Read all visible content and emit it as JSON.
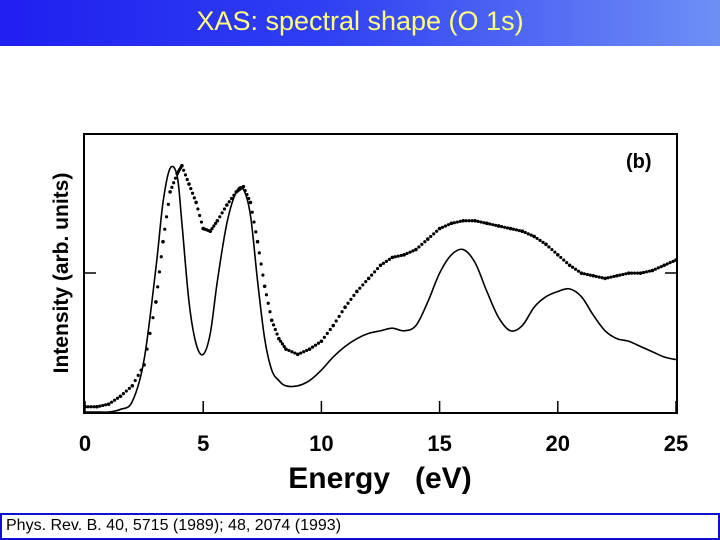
{
  "slide": {
    "title": "XAS: spectral shape (O 1s)",
    "caption": "Phys. Rev. B. 40, 5715 (1989); 48, 2074 (1993)",
    "title_bar_color": "#2a35f0",
    "title_text_color": "#ffff80",
    "caption_border_color": "#1010d0"
  },
  "chart_data": {
    "type": "line",
    "panel_label": "(b)",
    "xlabel": "Energy   (eV)",
    "ylabel": "Intensity (arb. units)",
    "xlim": [
      0,
      25
    ],
    "ylim": [
      0,
      1
    ],
    "xticks": [
      0,
      5,
      10,
      15,
      20,
      25
    ],
    "xtick_labels": [
      "0",
      "5",
      "10",
      "15",
      "20",
      "25"
    ],
    "series": [
      {
        "style": "dots",
        "x": [
          0,
          0.5,
          1.0,
          1.5,
          2.0,
          2.5,
          3.0,
          3.3,
          3.6,
          3.9,
          4.1,
          4.4,
          4.7,
          5.0,
          5.3,
          5.6,
          6.0,
          6.4,
          6.7,
          7.0,
          7.3,
          7.6,
          7.9,
          8.2,
          8.5,
          9.0,
          9.5,
          10.0,
          10.5,
          11.0,
          11.5,
          12.0,
          12.5,
          13.0,
          13.5,
          14.0,
          14.5,
          15.0,
          15.5,
          16.0,
          16.5,
          17.0,
          17.5,
          18.0,
          18.5,
          19.0,
          19.5,
          20.0,
          20.5,
          21.0,
          21.5,
          22.0,
          22.5,
          23.0,
          23.5,
          24.0,
          24.5,
          25.0
        ],
        "y": [
          0.02,
          0.02,
          0.03,
          0.06,
          0.1,
          0.18,
          0.42,
          0.65,
          0.84,
          0.91,
          0.94,
          0.87,
          0.8,
          0.7,
          0.69,
          0.73,
          0.79,
          0.84,
          0.86,
          0.8,
          0.65,
          0.48,
          0.35,
          0.28,
          0.24,
          0.22,
          0.24,
          0.27,
          0.33,
          0.4,
          0.46,
          0.51,
          0.56,
          0.59,
          0.6,
          0.62,
          0.66,
          0.7,
          0.72,
          0.73,
          0.73,
          0.72,
          0.71,
          0.7,
          0.69,
          0.67,
          0.64,
          0.6,
          0.56,
          0.53,
          0.52,
          0.51,
          0.52,
          0.53,
          0.53,
          0.54,
          0.56,
          0.58
        ]
      },
      {
        "style": "line",
        "x": [
          0,
          0.5,
          1.0,
          1.5,
          2.0,
          2.5,
          3.0,
          3.3,
          3.6,
          3.9,
          4.1,
          4.4,
          4.7,
          5.0,
          5.3,
          5.6,
          6.0,
          6.4,
          6.7,
          7.0,
          7.3,
          7.6,
          7.9,
          8.2,
          8.5,
          9.0,
          9.5,
          10.0,
          10.5,
          11.0,
          11.5,
          12.0,
          12.5,
          13.0,
          13.5,
          14.0,
          14.5,
          15.0,
          15.5,
          16.0,
          16.5,
          17.0,
          17.5,
          18.0,
          18.5,
          19.0,
          19.5,
          20.0,
          20.5,
          21.0,
          21.5,
          22.0,
          22.5,
          23.0,
          23.5,
          24.0,
          24.5,
          25.0
        ],
        "y": [
          0.0,
          0.0,
          0.0,
          0.01,
          0.04,
          0.2,
          0.55,
          0.8,
          0.93,
          0.9,
          0.72,
          0.42,
          0.26,
          0.22,
          0.3,
          0.5,
          0.72,
          0.84,
          0.85,
          0.75,
          0.5,
          0.28,
          0.16,
          0.12,
          0.1,
          0.1,
          0.12,
          0.16,
          0.21,
          0.25,
          0.28,
          0.3,
          0.31,
          0.32,
          0.31,
          0.33,
          0.42,
          0.53,
          0.6,
          0.62,
          0.57,
          0.46,
          0.36,
          0.31,
          0.33,
          0.4,
          0.44,
          0.46,
          0.47,
          0.44,
          0.37,
          0.31,
          0.28,
          0.27,
          0.25,
          0.23,
          0.21,
          0.2
        ]
      }
    ]
  }
}
